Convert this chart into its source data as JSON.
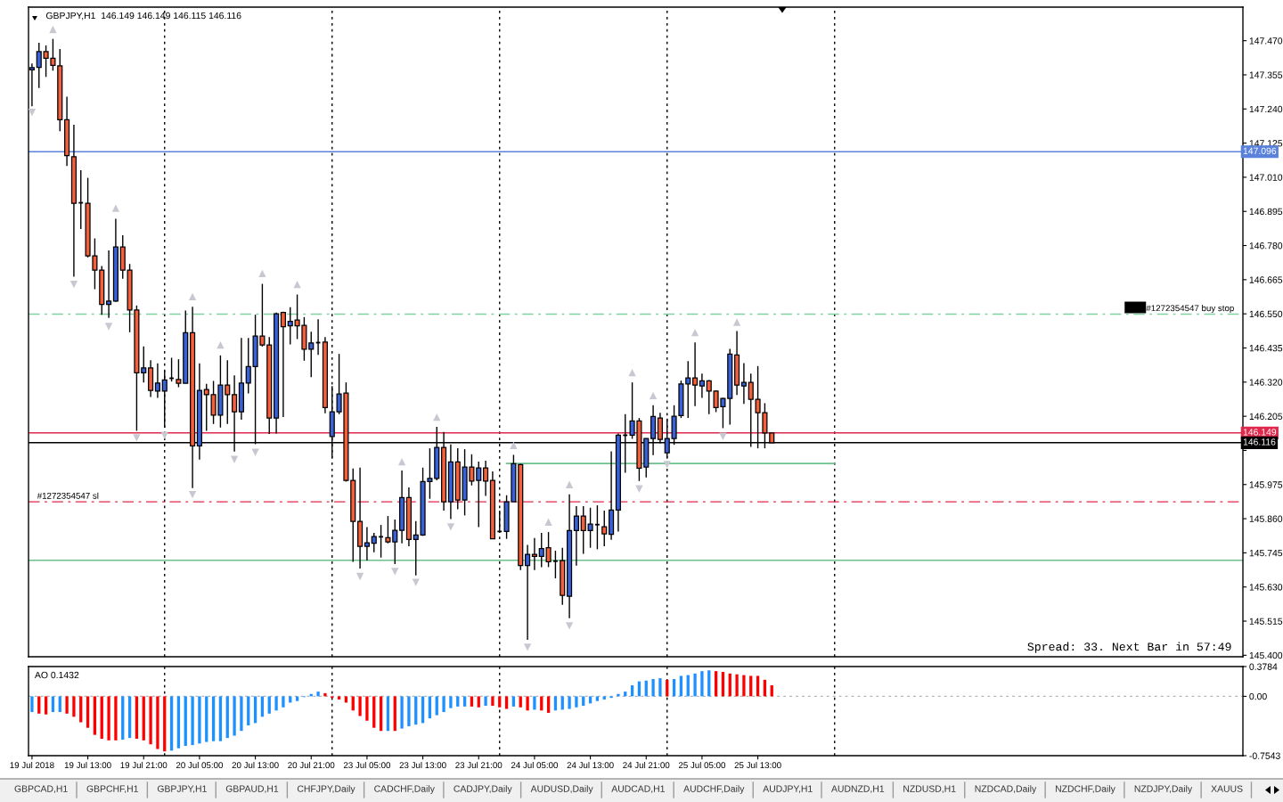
{
  "chart_data": [
    {
      "type": "candlestick",
      "title": "GBPJPY,H1  146.149 146.149 146.115 146.116",
      "categories": [
        null,
        null,
        null,
        null,
        null,
        null,
        null,
        null,
        null,
        null,
        null,
        null,
        null,
        null,
        null,
        null,
        null,
        null,
        null,
        null,
        null,
        null,
        null,
        null,
        null,
        null,
        null,
        null,
        null,
        null,
        null,
        null,
        null,
        null,
        null,
        null,
        null,
        null,
        null,
        null,
        null,
        null,
        null,
        null,
        null,
        null,
        null,
        null,
        null,
        null,
        null,
        null,
        null,
        null,
        null,
        null,
        null,
        null,
        null,
        null,
        null,
        null,
        null,
        null,
        null,
        null,
        null,
        null,
        null,
        null,
        null,
        null,
        null,
        null,
        null,
        null,
        null,
        null,
        null,
        null,
        null,
        null,
        null,
        null,
        null,
        null,
        null,
        null,
        null,
        null,
        null,
        null,
        null,
        null,
        null,
        null,
        null,
        null,
        null,
        null,
        null,
        null,
        null,
        null,
        null,
        null,
        null,
        null,
        null,
        null,
        null,
        null,
        null,
        null,
        null,
        null,
        null,
        null,
        null,
        null,
        null,
        null,
        null,
        null,
        null,
        null,
        null,
        null,
        null,
        null,
        null,
        null,
        null,
        null,
        null,
        null,
        null,
        null,
        null,
        null,
        null,
        null,
        null,
        null,
        null,
        null,
        null,
        null,
        null,
        null,
        null,
        null,
        null,
        null,
        null,
        null,
        null,
        null,
        null,
        null,
        null,
        null,
        null,
        null,
        null,
        null,
        null,
        null,
        null,
        null,
        null,
        null,
        null,
        null
      ],
      "ohlc": [
        [
          147.372,
          147.393,
          147.249,
          147.379
        ],
        [
          147.38,
          147.463,
          147.311,
          147.433
        ],
        [
          147.433,
          147.454,
          147.348,
          147.411
        ],
        [
          147.411,
          147.476,
          147.369,
          147.387
        ],
        [
          147.385,
          147.442,
          147.165,
          147.204
        ],
        [
          147.204,
          147.281,
          147.048,
          147.083
        ],
        [
          147.079,
          147.187,
          146.675,
          146.922
        ],
        [
          146.924,
          147.034,
          146.836,
          146.924
        ],
        [
          146.922,
          147.008,
          146.74,
          146.745
        ],
        [
          146.745,
          146.804,
          146.633,
          146.697
        ],
        [
          146.697,
          146.711,
          146.547,
          146.582
        ],
        [
          146.582,
          146.764,
          146.536,
          146.593
        ],
        [
          146.593,
          146.87,
          146.59,
          146.775
        ],
        [
          146.775,
          146.815,
          146.668,
          146.697
        ],
        [
          146.697,
          146.718,
          146.488,
          146.563
        ],
        [
          146.563,
          146.578,
          146.156,
          146.351
        ],
        [
          146.351,
          146.44,
          146.319,
          146.368
        ],
        [
          146.368,
          146.394,
          146.27,
          146.292
        ],
        [
          146.29,
          146.383,
          146.267,
          146.317
        ],
        [
          146.29,
          146.359,
          146.167,
          146.327
        ],
        [
          146.333,
          146.402,
          146.322,
          146.333
        ],
        [
          146.329,
          146.397,
          146.303,
          146.316
        ],
        [
          146.316,
          146.561,
          146.316,
          146.486
        ],
        [
          146.486,
          146.574,
          145.963,
          146.105
        ],
        [
          146.105,
          146.383,
          146.059,
          146.292
        ],
        [
          146.295,
          146.314,
          146.156,
          146.278
        ],
        [
          146.278,
          146.324,
          146.179,
          146.209
        ],
        [
          146.209,
          146.41,
          146.167,
          146.31
        ],
        [
          146.31,
          146.394,
          146.179,
          146.278
        ],
        [
          146.278,
          146.343,
          146.086,
          146.22
        ],
        [
          146.22,
          146.469,
          146.193,
          146.317
        ],
        [
          146.317,
          146.469,
          146.282,
          146.372
        ],
        [
          146.372,
          146.547,
          146.111,
          146.475
        ],
        [
          146.475,
          146.651,
          146.44,
          146.445
        ],
        [
          146.445,
          146.472,
          146.145,
          146.199
        ],
        [
          146.199,
          146.554,
          146.147,
          146.55
        ],
        [
          146.555,
          146.557,
          146.202,
          146.507
        ],
        [
          146.51,
          146.572,
          146.447,
          146.525
        ],
        [
          146.529,
          146.615,
          146.465,
          146.51
        ],
        [
          146.511,
          146.539,
          146.392,
          146.431
        ],
        [
          146.431,
          146.49,
          146.337,
          146.452
        ],
        [
          146.453,
          146.532,
          146.412,
          146.453
        ],
        [
          146.455,
          146.472,
          146.215,
          146.234
        ],
        [
          146.137,
          146.307,
          146.065,
          146.22
        ],
        [
          146.22,
          146.415,
          146.212,
          146.28
        ],
        [
          146.283,
          146.319,
          145.985,
          145.989
        ],
        [
          145.989,
          146.029,
          145.715,
          145.851
        ],
        [
          145.851,
          146.032,
          145.692,
          145.767
        ],
        [
          145.767,
          145.832,
          145.719,
          145.779
        ],
        [
          145.777,
          145.812,
          145.747,
          145.8
        ],
        [
          145.799,
          145.839,
          145.729,
          145.799
        ],
        [
          145.796,
          145.869,
          145.777,
          145.782
        ],
        [
          145.782,
          145.857,
          145.707,
          145.821
        ],
        [
          145.821,
          146.022,
          145.777,
          145.931
        ],
        [
          145.931,
          145.965,
          145.767,
          145.79
        ],
        [
          145.79,
          145.852,
          145.669,
          145.805
        ],
        [
          145.805,
          146.032,
          145.802,
          145.985
        ],
        [
          145.985,
          146.097,
          145.927,
          145.996
        ],
        [
          145.996,
          146.169,
          145.989,
          146.1
        ],
        [
          146.1,
          146.152,
          145.887,
          145.917
        ],
        [
          145.917,
          146.11,
          145.859,
          146.051
        ],
        [
          146.051,
          146.097,
          145.892,
          145.923
        ],
        [
          145.923,
          146.094,
          145.871,
          146.034
        ],
        [
          146.034,
          146.077,
          145.972,
          145.987
        ],
        [
          145.989,
          146.052,
          145.832,
          146.031
        ],
        [
          146.031,
          146.055,
          145.937,
          145.987
        ],
        [
          145.989,
          146.019,
          145.792,
          145.792
        ],
        [
          145.817,
          145.887,
          145.814,
          145.817
        ],
        [
          145.817,
          145.939,
          145.792,
          145.917
        ],
        [
          145.917,
          146.075,
          145.917,
          146.045
        ],
        [
          146.042,
          146.045,
          145.687,
          145.702
        ],
        [
          145.702,
          145.772,
          145.452,
          145.74
        ],
        [
          145.74,
          145.795,
          145.687,
          145.733
        ],
        [
          145.733,
          145.812,
          145.697,
          145.759
        ],
        [
          145.762,
          145.815,
          145.697,
          145.715
        ],
        [
          145.717,
          145.752,
          145.659,
          145.717
        ],
        [
          145.719,
          145.762,
          145.57,
          145.602
        ],
        [
          145.599,
          145.942,
          145.525,
          145.82
        ],
        [
          145.82,
          145.902,
          145.702,
          145.869
        ],
        [
          145.869,
          145.902,
          145.742,
          145.82
        ],
        [
          145.82,
          145.897,
          145.762,
          145.842
        ],
        [
          145.84,
          145.905,
          145.757,
          145.84
        ],
        [
          145.833,
          145.887,
          145.767,
          145.809
        ],
        [
          145.807,
          146.087,
          145.789,
          145.889
        ],
        [
          145.889,
          146.147,
          145.817,
          146.141
        ],
        [
          146.141,
          146.212,
          146.015,
          146.141
        ],
        [
          146.141,
          146.319,
          146.129,
          146.189
        ],
        [
          146.189,
          146.199,
          145.987,
          146.03
        ],
        [
          146.034,
          146.131,
          145.999,
          146.13
        ],
        [
          146.13,
          146.242,
          146.074,
          146.204
        ],
        [
          146.199,
          146.217,
          146.114,
          146.127
        ],
        [
          146.082,
          146.197,
          146.065,
          146.13
        ],
        [
          146.13,
          146.242,
          146.109,
          146.205
        ],
        [
          146.207,
          146.325,
          146.199,
          146.314
        ],
        [
          146.314,
          146.391,
          146.199,
          146.334
        ],
        [
          146.334,
          146.454,
          146.239,
          146.31
        ],
        [
          146.307,
          146.349,
          146.267,
          146.324
        ],
        [
          146.324,
          146.327,
          146.212,
          146.29
        ],
        [
          146.29,
          146.292,
          146.219,
          146.234
        ],
        [
          146.237,
          146.267,
          146.165,
          146.265
        ],
        [
          146.265,
          146.432,
          146.177,
          146.414
        ],
        [
          146.411,
          146.492,
          146.277,
          146.31
        ],
        [
          146.307,
          146.384,
          146.247,
          146.319
        ],
        [
          146.319,
          146.349,
          146.102,
          146.262
        ],
        [
          146.262,
          146.374,
          146.097,
          146.217
        ],
        [
          146.217,
          146.249,
          146.097,
          146.149
        ],
        [
          146.149,
          146.149,
          146.115,
          146.116
        ],
        null,
        null,
        null,
        null,
        null,
        null,
        null,
        null,
        null,
        null,
        null,
        null,
        null,
        null,
        null,
        null,
        null,
        null,
        null,
        null,
        null,
        null,
        null,
        null,
        null,
        null,
        null,
        null,
        null,
        null,
        null,
        null,
        null,
        null,
        null,
        null,
        null,
        null,
        null,
        null,
        null,
        null,
        null,
        null,
        null,
        null,
        null,
        null,
        null,
        null,
        null,
        null,
        null,
        null,
        null,
        null,
        null,
        null,
        null,
        null,
        null,
        null,
        null,
        null,
        null,
        null,
        null
      ],
      "colors": [
        "#3a62d8",
        "#3a62d8",
        "#f4603c",
        "#f4603c",
        "#f4603c",
        "#f4603c",
        "#f4603c",
        "#000000",
        "#f4603c",
        "#f4603c",
        "#f4603c",
        "#3a62d8",
        "#3a62d8",
        "#f4603c",
        "#f4603c",
        "#f4603c",
        "#3a62d8",
        "#f4603c",
        "#3a62d8",
        "#3a62d8",
        "#000000",
        "#f4603c",
        "#3a62d8",
        "#f4603c",
        "#3a62d8",
        "#f4603c",
        "#f4603c",
        "#3a62d8",
        "#f4603c",
        "#f4603c",
        "#3a62d8",
        "#3a62d8",
        "#3a62d8",
        "#f4603c",
        "#f4603c",
        "#3a62d8",
        "#f4603c",
        "#3a62d8",
        "#f4603c",
        "#f4603c",
        "#3a62d8",
        "#000000",
        "#f4603c",
        "#3a62d8",
        "#3a62d8",
        "#f4603c",
        "#f4603c",
        "#f4603c",
        "#3a62d8",
        "#3a62d8",
        "#000000",
        "#f4603c",
        "#3a62d8",
        "#3a62d8",
        "#f4603c",
        "#3a62d8",
        "#3a62d8",
        "#3a62d8",
        "#3a62d8",
        "#f4603c",
        "#3a62d8",
        "#f4603c",
        "#3a62d8",
        "#f4603c",
        "#3a62d8",
        "#f4603c",
        "#f4603c",
        "#000000",
        "#3a62d8",
        "#3a62d8",
        "#f4603c",
        "#3a62d8",
        "#f4603c",
        "#3a62d8",
        "#f4603c",
        "#000000",
        "#f4603c",
        "#3a62d8",
        "#3a62d8",
        "#f4603c",
        "#3a62d8",
        "#000000",
        "#f4603c",
        "#3a62d8",
        "#3a62d8",
        "#000000",
        "#3a62d8",
        "#f4603c",
        "#3a62d8",
        "#3a62d8",
        "#f4603c",
        "#3a62d8",
        "#3a62d8",
        "#3a62d8",
        "#3a62d8",
        "#f4603c",
        "#3a62d8",
        "#f4603c",
        "#f4603c",
        "#3a62d8",
        "#3a62d8",
        "#f4603c",
        "#3a62d8",
        "#f4603c",
        "#f4603c",
        "#f4603c",
        "#f4603c",
        null,
        null,
        null,
        null,
        null,
        null,
        null,
        null,
        null,
        null,
        null,
        null,
        null,
        null,
        null,
        null,
        null,
        null,
        null,
        null,
        null,
        null,
        null,
        null,
        null,
        null,
        null,
        null,
        null,
        null,
        null,
        null,
        null,
        null,
        null,
        null,
        null,
        null,
        null,
        null,
        null,
        null,
        null,
        null,
        null,
        null,
        null,
        null,
        null,
        null,
        null,
        null,
        null,
        null,
        null,
        null,
        null,
        null,
        null,
        null,
        null,
        null,
        null,
        null,
        null,
        null,
        null
      ],
      "series": [
        {
          "type": "scatter",
          "color": "#c8c8d2",
          "marker": "triangle",
          "values": [
            null,
            null,
            null,
            147.508,
            null,
            null,
            null,
            null,
            null,
            null,
            null,
            null,
            146.906,
            null,
            null,
            null,
            null,
            null,
            null,
            null,
            null,
            null,
            null,
            146.608,
            null,
            null,
            null,
            146.445,
            null,
            null,
            null,
            null,
            null,
            146.686,
            null,
            null,
            null,
            null,
            146.649,
            null,
            null,
            null,
            null,
            null,
            null,
            null,
            null,
            null,
            null,
            null,
            null,
            null,
            null,
            146.052,
            null,
            null,
            null,
            null,
            146.202,
            null,
            null,
            null,
            null,
            null,
            null,
            null,
            null,
            null,
            null,
            146.107,
            null,
            null,
            null,
            null,
            145.849,
            null,
            null,
            145.975,
            null,
            null,
            null,
            null,
            null,
            null,
            null,
            null,
            146.352,
            null,
            null,
            146.275,
            null,
            null,
            null,
            null,
            null,
            146.487,
            null,
            null,
            null,
            null,
            null,
            146.522,
            null,
            null,
            null,
            null,
            null,
            null,
            null,
            null,
            null,
            null,
            null,
            null,
            null,
            null,
            null,
            null,
            null,
            null,
            null,
            null,
            null,
            null,
            null,
            null,
            null,
            null,
            null,
            null,
            null,
            null,
            null,
            null,
            null,
            null,
            null,
            null,
            null,
            null,
            null,
            null,
            null,
            null,
            null,
            null,
            null,
            null,
            null,
            null,
            null,
            null,
            null,
            null,
            null,
            null,
            null,
            null,
            null,
            null,
            null,
            null,
            null,
            null,
            null,
            null,
            null,
            null,
            null,
            null,
            null,
            null,
            null,
            null
          ]
        },
        {
          "type": "scatter",
          "color": "#c8c8d2",
          "marker": "triangle",
          "values": [
            147.228,
            null,
            null,
            null,
            null,
            null,
            146.649,
            null,
            null,
            null,
            null,
            146.507,
            null,
            null,
            null,
            146.132,
            null,
            null,
            null,
            146.14,
            null,
            null,
            null,
            145.941,
            null,
            null,
            null,
            null,
            null,
            146.059,
            null,
            null,
            146.083,
            null,
            null,
            null,
            null,
            null,
            null,
            null,
            null,
            null,
            null,
            null,
            null,
            null,
            null,
            145.665,
            null,
            null,
            null,
            null,
            145.682,
            null,
            null,
            145.645,
            null,
            null,
            null,
            null,
            145.832,
            null,
            null,
            null,
            null,
            null,
            null,
            null,
            null,
            null,
            null,
            145.427,
            null,
            null,
            null,
            null,
            null,
            145.499,
            null,
            null,
            null,
            null,
            null,
            null,
            null,
            null,
            null,
            145.96,
            null,
            null,
            null,
            146.042,
            null,
            null,
            null,
            null,
            null,
            null,
            null,
            146.137,
            null,
            null,
            null,
            null,
            null,
            null,
            null,
            null,
            null,
            null,
            null,
            null,
            null,
            null,
            null,
            null,
            null,
            null,
            null,
            null,
            null,
            null,
            null,
            null,
            null,
            null,
            null,
            null,
            null,
            null,
            null,
            null,
            null,
            null,
            null,
            null,
            null,
            null,
            null,
            null,
            null,
            null,
            null,
            null,
            null,
            null,
            null,
            null,
            null,
            null,
            null,
            null,
            null,
            null,
            null,
            null,
            null,
            null,
            null,
            null,
            null,
            null,
            null,
            null,
            null,
            null,
            null,
            null,
            null,
            null,
            null,
            null,
            null,
            null
          ]
        },
        {
          "type": "line",
          "color": "#6cc08c",
          "values": [
            null,
            null,
            null,
            null,
            null,
            null,
            null,
            null,
            null,
            null,
            null,
            null,
            null,
            null,
            null,
            null,
            null,
            null,
            null,
            null,
            null,
            null,
            null,
            null,
            null,
            null,
            null,
            null,
            null,
            null,
            null,
            null,
            null,
            null,
            null,
            null,
            null,
            null,
            null,
            null,
            null,
            null,
            null,
            null,
            null,
            null,
            null,
            null,
            null,
            null,
            null,
            null,
            null,
            null,
            null,
            null,
            null,
            null,
            null,
            null,
            null,
            null,
            null,
            null,
            null,
            null,
            null,
            null,
            146.046,
            146.046,
            146.046,
            146.046,
            146.046,
            146.046,
            146.046,
            146.046,
            146.046,
            146.046,
            146.046,
            146.046,
            146.046,
            146.046,
            146.046,
            146.046,
            146.046,
            146.046,
            146.046,
            146.046,
            146.046,
            146.046,
            146.046,
            146.046,
            146.046,
            146.046,
            146.046,
            146.046,
            146.046,
            146.046,
            146.046,
            146.046,
            146.046,
            146.046,
            146.046,
            146.046,
            146.046,
            146.046,
            146.046,
            146.046,
            146.046,
            146.046,
            146.046,
            146.046,
            146.046,
            146.046,
            146.046,
            146.046,
            null,
            null,
            null,
            null,
            null,
            null,
            null,
            null,
            null,
            null,
            null,
            null,
            null,
            null,
            null,
            null,
            null,
            null,
            null,
            null,
            null,
            null,
            null,
            null,
            null,
            null,
            null,
            null,
            null,
            null,
            null,
            null,
            null,
            null,
            null,
            null,
            null,
            null,
            null,
            null,
            null,
            null,
            null,
            null,
            null,
            null,
            null,
            null,
            null,
            null,
            null,
            null,
            null,
            null,
            null,
            null,
            null,
            null
          ]
        }
      ],
      "ylim": [
        145.395,
        147.583
      ],
      "yticks": [
        {
          "value": 147.47,
          "label": "147.470"
        },
        147.355,
        {
          "value": 147.24,
          "label": "147.240"
        },
        147.125,
        {
          "value": 147.01,
          "label": "147.010"
        },
        146.895,
        {
          "value": 146.78,
          "label": "146.780"
        },
        146.665,
        {
          "value": 146.55,
          "label": "146.550"
        },
        146.435,
        {
          "value": 146.32,
          "label": "146.320"
        },
        146.205,
        {
          "value": 146.09,
          "label": null
        },
        145.975,
        {
          "value": 145.86,
          "label": "145.860"
        },
        145.745,
        {
          "value": 145.63,
          "label": "145.630"
        },
        145.515,
        {
          "value": 145.4,
          "label": "145.400"
        }
      ],
      "ref_lines": [
        {
          "axis": "y",
          "value": 147.096,
          "label": "147.096",
          "color": "#5a82dc"
        },
        {
          "axis": "y",
          "value": 146.549,
          "label": "#1272354547 buy stop",
          "color": "#80d0a0",
          "line_style": "dashed"
        },
        {
          "axis": "y",
          "value": 146.149,
          "label": "146.149",
          "color": "#e0284c"
        },
        {
          "axis": "y",
          "value": 146.116,
          "label": "146.116",
          "color": "#000000"
        },
        {
          "axis": "y",
          "value": 145.917,
          "label": "#1272354547 sl",
          "color": "#e0284c",
          "line_style": "dashed"
        },
        {
          "axis": "y",
          "value": 145.72,
          "color": "#6cc08c"
        }
      ],
      "annotations": [
        "Spread: 33. Next Bar in 57:49"
      ]
    },
    {
      "type": "bar",
      "title": "AO 0.1432",
      "categories": [
        "19 Jul 2018",
        null,
        null,
        null,
        null,
        null,
        null,
        null,
        "19 Jul 13:00",
        null,
        null,
        null,
        null,
        null,
        null,
        null,
        "19 Jul 21:00",
        null,
        null,
        null,
        null,
        null,
        null,
        null,
        "20 Jul 05:00",
        null,
        null,
        null,
        null,
        null,
        null,
        null,
        "20 Jul 13:00",
        null,
        null,
        null,
        null,
        null,
        null,
        null,
        "20 Jul 21:00",
        null,
        null,
        null,
        null,
        null,
        null,
        null,
        "23 Jul 05:00",
        null,
        null,
        null,
        null,
        null,
        null,
        null,
        "23 Jul 13:00",
        null,
        null,
        null,
        null,
        null,
        null,
        null,
        "23 Jul 21:00",
        null,
        null,
        null,
        null,
        null,
        null,
        null,
        "24 Jul 05:00",
        null,
        null,
        null,
        null,
        null,
        null,
        null,
        "24 Jul 13:00",
        null,
        null,
        null,
        null,
        null,
        null,
        null,
        "24 Jul 21:00",
        null,
        null,
        null,
        null,
        null,
        null,
        null,
        "25 Jul 05:00",
        null,
        null,
        null,
        null,
        null,
        null,
        null,
        "25 Jul 13:00",
        null,
        null,
        null,
        null,
        null,
        null,
        null,
        null,
        null,
        null,
        null,
        null,
        null,
        null,
        null,
        null,
        null,
        null,
        null,
        null,
        null,
        null,
        null,
        null,
        null,
        null,
        null,
        null,
        null,
        null,
        null,
        null,
        null,
        null,
        null,
        null,
        null,
        null,
        null,
        null,
        null,
        null,
        null,
        null,
        null,
        null,
        null,
        null,
        null,
        null,
        null,
        null,
        null,
        null,
        null,
        null,
        null,
        null,
        null,
        null,
        null,
        null,
        null,
        null,
        null,
        null,
        null,
        null,
        null
      ],
      "values": [
        -0.2,
        -0.22,
        -0.23,
        -0.2,
        -0.2,
        -0.22,
        -0.26,
        -0.33,
        -0.4,
        -0.49,
        -0.54,
        -0.56,
        -0.56,
        -0.55,
        -0.53,
        -0.54,
        -0.56,
        -0.61,
        -0.67,
        -0.7,
        -0.69,
        -0.66,
        -0.63,
        -0.62,
        -0.6,
        -0.58,
        -0.57,
        -0.57,
        -0.53,
        -0.5,
        -0.44,
        -0.37,
        -0.34,
        -0.26,
        -0.22,
        -0.18,
        -0.14,
        -0.08,
        -0.06,
        -0.01,
        0.03,
        0.06,
        0.04,
        -0.02,
        -0.04,
        -0.08,
        -0.18,
        -0.25,
        -0.31,
        -0.4,
        -0.44,
        -0.44,
        -0.44,
        -0.41,
        -0.38,
        -0.36,
        -0.34,
        -0.28,
        -0.24,
        -0.2,
        -0.15,
        -0.13,
        -0.13,
        -0.13,
        -0.14,
        -0.12,
        -0.12,
        -0.14,
        -0.16,
        -0.13,
        -0.14,
        -0.18,
        -0.17,
        -0.18,
        -0.21,
        -0.18,
        -0.17,
        -0.16,
        -0.14,
        -0.12,
        -0.09,
        -0.06,
        -0.04,
        -0.02,
        0.03,
        0.06,
        0.14,
        0.19,
        0.2,
        0.22,
        0.23,
        0.21,
        0.22,
        0.26,
        0.27,
        0.29,
        0.32,
        0.33,
        0.32,
        0.31,
        0.29,
        0.28,
        0.27,
        0.26,
        0.26,
        0.21,
        0.14,
        null,
        null,
        null,
        null,
        null,
        null,
        null,
        null,
        null,
        null,
        null,
        null,
        null,
        null,
        null,
        null,
        null,
        null,
        null,
        null,
        null,
        null,
        null,
        null,
        null,
        null,
        null,
        null,
        null,
        null,
        null,
        null,
        null,
        null,
        null,
        null,
        null,
        null,
        null,
        null,
        null,
        null,
        null,
        null,
        null,
        null,
        null,
        null,
        null,
        null,
        null,
        null,
        null,
        null,
        null,
        null,
        null,
        null,
        null,
        null,
        null,
        null,
        null,
        null,
        null,
        null,
        null
      ],
      "colors": [
        "#1e90ff",
        "#ff0000",
        "#ff0000",
        "#1e90ff",
        "#1e90ff",
        "#ff0000",
        "#ff0000",
        "#ff0000",
        "#ff0000",
        "#ff0000",
        "#ff0000",
        "#ff0000",
        "#ff0000",
        "#1e90ff",
        "#1e90ff",
        "#ff0000",
        "#ff0000",
        "#ff0000",
        "#ff0000",
        "#ff0000",
        "#1e90ff",
        "#1e90ff",
        "#1e90ff",
        "#1e90ff",
        "#1e90ff",
        "#1e90ff",
        "#1e90ff",
        "#1e90ff",
        "#1e90ff",
        "#1e90ff",
        "#1e90ff",
        "#1e90ff",
        "#1e90ff",
        "#1e90ff",
        "#1e90ff",
        "#1e90ff",
        "#1e90ff",
        "#1e90ff",
        "#1e90ff",
        "#1e90ff",
        "#1e90ff",
        "#1e90ff",
        "#ff0000",
        "#ff0000",
        "#ff0000",
        "#ff0000",
        "#ff0000",
        "#ff0000",
        "#ff0000",
        "#ff0000",
        "#ff0000",
        "#1e90ff",
        "#ff0000",
        "#1e90ff",
        "#1e90ff",
        "#1e90ff",
        "#1e90ff",
        "#1e90ff",
        "#1e90ff",
        "#1e90ff",
        "#1e90ff",
        "#1e90ff",
        "#1e90ff",
        "#ff0000",
        "#ff0000",
        "#1e90ff",
        "#ff0000",
        "#ff0000",
        "#ff0000",
        "#1e90ff",
        "#ff0000",
        "#ff0000",
        "#1e90ff",
        "#ff0000",
        "#ff0000",
        "#1e90ff",
        "#1e90ff",
        "#1e90ff",
        "#1e90ff",
        "#1e90ff",
        "#1e90ff",
        "#1e90ff",
        "#1e90ff",
        "#1e90ff",
        "#1e90ff",
        "#1e90ff",
        "#1e90ff",
        "#1e90ff",
        "#1e90ff",
        "#1e90ff",
        "#1e90ff",
        "#ff0000",
        "#1e90ff",
        "#1e90ff",
        "#1e90ff",
        "#1e90ff",
        "#1e90ff",
        "#1e90ff",
        "#ff0000",
        "#ff0000",
        "#ff0000",
        "#ff0000",
        "#ff0000",
        "#ff0000",
        "#ff0000",
        "#ff0000",
        "#ff0000",
        null,
        null,
        null,
        null,
        null,
        null,
        null,
        null,
        null,
        null,
        null,
        null,
        null,
        null,
        null,
        null,
        null,
        null,
        null,
        null,
        null,
        null,
        null,
        null,
        null,
        null,
        null,
        null,
        null,
        null,
        null,
        null,
        null,
        null,
        null,
        null,
        null,
        null,
        null,
        null,
        null,
        null,
        null,
        null,
        null,
        null,
        null,
        null,
        null,
        null,
        null,
        null,
        null,
        null,
        null,
        null,
        null,
        null,
        null,
        null,
        null,
        null,
        null,
        null,
        null,
        null,
        null
      ],
      "ylim": [
        -0.7543,
        0.3784
      ],
      "yticks": [
        0.3784,
        {
          "value": 0,
          "label": "0.00"
        },
        -0.7543
      ],
      "ref_lines": [
        {
          "axis": "y",
          "value": 0,
          "color": "#b4b4b4",
          "line_style": "dotted"
        }
      ],
      "annotations": [
        "GBPCAD,H1",
        "GBPCHF,H1",
        "GBPJPY,H1",
        "GBPAUD,H1",
        "CHFJPY,Daily",
        "CADCHF,Daily",
        "CADJPY,Daily",
        "AUDUSD,Daily",
        "AUDCAD,H1",
        "AUDCHF,Daily",
        "AUDJPY,H1",
        "AUDNZD,H1",
        "NZDUSD,H1",
        "NZDCAD,Daily",
        "NZDCHF,Daily",
        "NZDJPY,Daily",
        "XAUUS"
      ]
    }
  ]
}
